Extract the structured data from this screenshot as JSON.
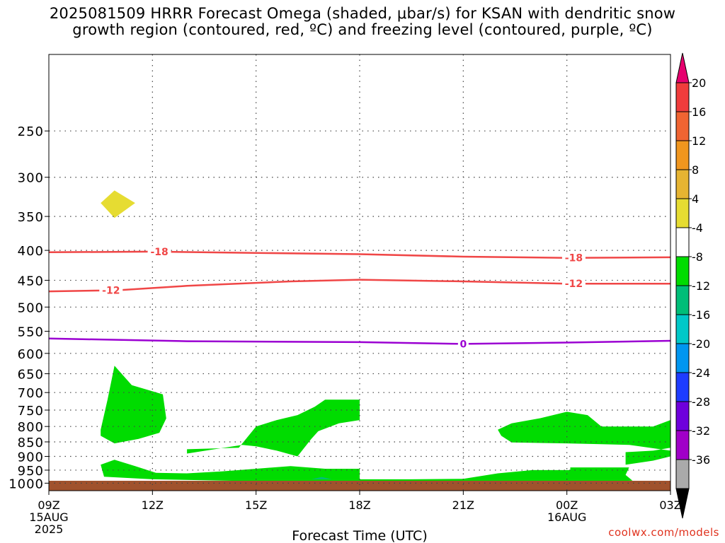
{
  "title_line1": "2025081509 HRRR Forecast Omega (shaded, μbar/s) for KSAN with dendritic snow",
  "title_line2": "growth region (contoured, red, ºC) and freezing level (contoured, purple, ºC)",
  "credit": "coolwx.com/models",
  "chart_data": {
    "type": "heatmap",
    "subtype": "time-pressure cross section",
    "xlabel": "Forecast Time (UTC)",
    "ylabel": "",
    "x_start": "2025-08-15 09Z",
    "x_end": "2025-08-16 03Z",
    "x_ticks": [
      {
        "hour": 0,
        "label": "09Z",
        "sub1": "15AUG",
        "sub2": "2025"
      },
      {
        "hour": 3,
        "label": "12Z",
        "sub1": "",
        "sub2": ""
      },
      {
        "hour": 6,
        "label": "15Z",
        "sub1": "",
        "sub2": ""
      },
      {
        "hour": 9,
        "label": "18Z",
        "sub1": "",
        "sub2": ""
      },
      {
        "hour": 12,
        "label": "21Z",
        "sub1": "",
        "sub2": ""
      },
      {
        "hour": 15,
        "label": "00Z",
        "sub1": "16AUG",
        "sub2": ""
      },
      {
        "hour": 18,
        "label": "03Z",
        "sub1": "",
        "sub2": ""
      }
    ],
    "y_axis": "pressure (hPa)",
    "y_scale": "log, inverted",
    "y_ticks": [
      250,
      300,
      350,
      400,
      450,
      500,
      550,
      600,
      650,
      700,
      750,
      800,
      850,
      900,
      950,
      1000
    ],
    "ylim": [
      1030,
      185
    ],
    "grid": true,
    "surface_color": "#a0522d",
    "colorbar": {
      "placement": "right",
      "ticks": [
        20,
        16,
        12,
        8,
        4,
        -4,
        -8,
        -12,
        -16,
        -20,
        -24,
        -28,
        -32,
        -36
      ],
      "colors": [
        "#e6006e",
        "#f03c3c",
        "#f06432",
        "#f0961e",
        "#e6b432",
        "#e6dc32",
        "#ffffff",
        "#00dc00",
        "#00be78",
        "#00c8c8",
        "#0096f0",
        "#1e3cff",
        "#6e00dc",
        "#a000c8",
        "#aaaaaa",
        "#000000"
      ]
    },
    "contours": [
      {
        "label": "-18",
        "color": "#f04646",
        "points": [
          [
            0,
            403
          ],
          [
            3,
            402
          ],
          [
            6,
            404
          ],
          [
            9,
            406
          ],
          [
            12,
            410
          ],
          [
            15,
            412
          ],
          [
            18,
            411
          ]
        ],
        "label_hours": [
          3.2,
          15.2
        ]
      },
      {
        "label": "-12",
        "color": "#f04646",
        "points": [
          [
            0,
            470
          ],
          [
            2,
            468
          ],
          [
            4,
            460
          ],
          [
            7,
            452
          ],
          [
            9,
            449
          ],
          [
            12,
            452
          ],
          [
            15,
            456
          ],
          [
            18,
            456
          ]
        ],
        "label_hours": [
          1.8,
          15.2
        ]
      },
      {
        "label": "0",
        "color": "#9b00d2",
        "points": [
          [
            0,
            566
          ],
          [
            4,
            572
          ],
          [
            9,
            574
          ],
          [
            12,
            578
          ],
          [
            15,
            575
          ],
          [
            18,
            571
          ]
        ],
        "label_hours": [
          12.0
        ]
      }
    ],
    "shaded_regions": [
      {
        "range": "4 to 8",
        "color": "#e6dc32",
        "points": [
          [
            1.5,
            332
          ],
          [
            1.9,
            316
          ],
          [
            2.5,
            332
          ],
          [
            1.9,
            352
          ]
        ]
      },
      {
        "range": "-4 to -8",
        "color": "#00dc00",
        "points": [
          [
            1.5,
            810
          ],
          [
            1.7,
            720
          ],
          [
            1.9,
            630
          ],
          [
            2.4,
            680
          ],
          [
            3.3,
            705
          ],
          [
            3.4,
            775
          ],
          [
            3.2,
            820
          ],
          [
            2.6,
            840
          ],
          [
            1.9,
            855
          ],
          [
            1.5,
            830
          ]
        ]
      },
      {
        "range": "-4 to -8",
        "color": "#00dc00",
        "points": [
          [
            4.0,
            875
          ],
          [
            5.5,
            870
          ],
          [
            6.0,
            800
          ],
          [
            6.6,
            780
          ],
          [
            7.2,
            765
          ],
          [
            7.7,
            740
          ],
          [
            8.0,
            720
          ],
          [
            9.0,
            720
          ],
          [
            9.0,
            780
          ],
          [
            8.4,
            790
          ],
          [
            7.8,
            815
          ],
          [
            7.6,
            840
          ],
          [
            7.2,
            900
          ],
          [
            6.6,
            880
          ],
          [
            6.0,
            865
          ],
          [
            5.6,
            860
          ],
          [
            4.0,
            890
          ]
        ]
      },
      {
        "range": "-4 to -8",
        "color": "#00dc00",
        "points": [
          [
            1.5,
            930
          ],
          [
            1.9,
            912
          ],
          [
            2.5,
            935
          ],
          [
            3.1,
            960
          ],
          [
            4.0,
            962
          ],
          [
            5.0,
            955
          ],
          [
            6.0,
            945
          ],
          [
            7.0,
            935
          ],
          [
            8.0,
            945
          ],
          [
            9.0,
            945
          ],
          [
            9.0,
            985
          ],
          [
            10.5,
            985
          ],
          [
            12.0,
            983
          ],
          [
            13.0,
            962
          ],
          [
            14.0,
            950
          ],
          [
            15.1,
            950
          ],
          [
            15.1,
            940
          ],
          [
            16.8,
            940
          ],
          [
            16.7,
            968
          ],
          [
            16.9,
            990
          ],
          [
            16.0,
            995
          ],
          [
            10.0,
            1000
          ],
          [
            7.5,
            995
          ],
          [
            5.0,
            990
          ],
          [
            3.0,
            985
          ],
          [
            1.6,
            975
          ]
        ]
      },
      {
        "range": "-4 to -8",
        "color": "#00dc00",
        "points": [
          [
            13.0,
            810
          ],
          [
            13.4,
            790
          ],
          [
            14.2,
            775
          ],
          [
            15.0,
            755
          ],
          [
            15.6,
            765
          ],
          [
            16.0,
            800
          ],
          [
            17.5,
            800
          ],
          [
            18.0,
            780
          ],
          [
            18.0,
            870
          ],
          [
            17.5,
            880
          ],
          [
            16.7,
            885
          ],
          [
            16.7,
            930
          ],
          [
            17.5,
            915
          ],
          [
            18.0,
            900
          ],
          [
            18.0,
            880
          ],
          [
            16.8,
            860
          ],
          [
            16.0,
            858
          ],
          [
            15.0,
            855
          ],
          [
            13.4,
            852
          ],
          [
            13.1,
            830
          ]
        ]
      },
      {
        "range": "-8 to -12",
        "color": "#00be78",
        "points": [
          [
            7.6,
            985
          ],
          [
            7.9,
            976
          ],
          [
            8.2,
            985
          ]
        ]
      }
    ]
  }
}
